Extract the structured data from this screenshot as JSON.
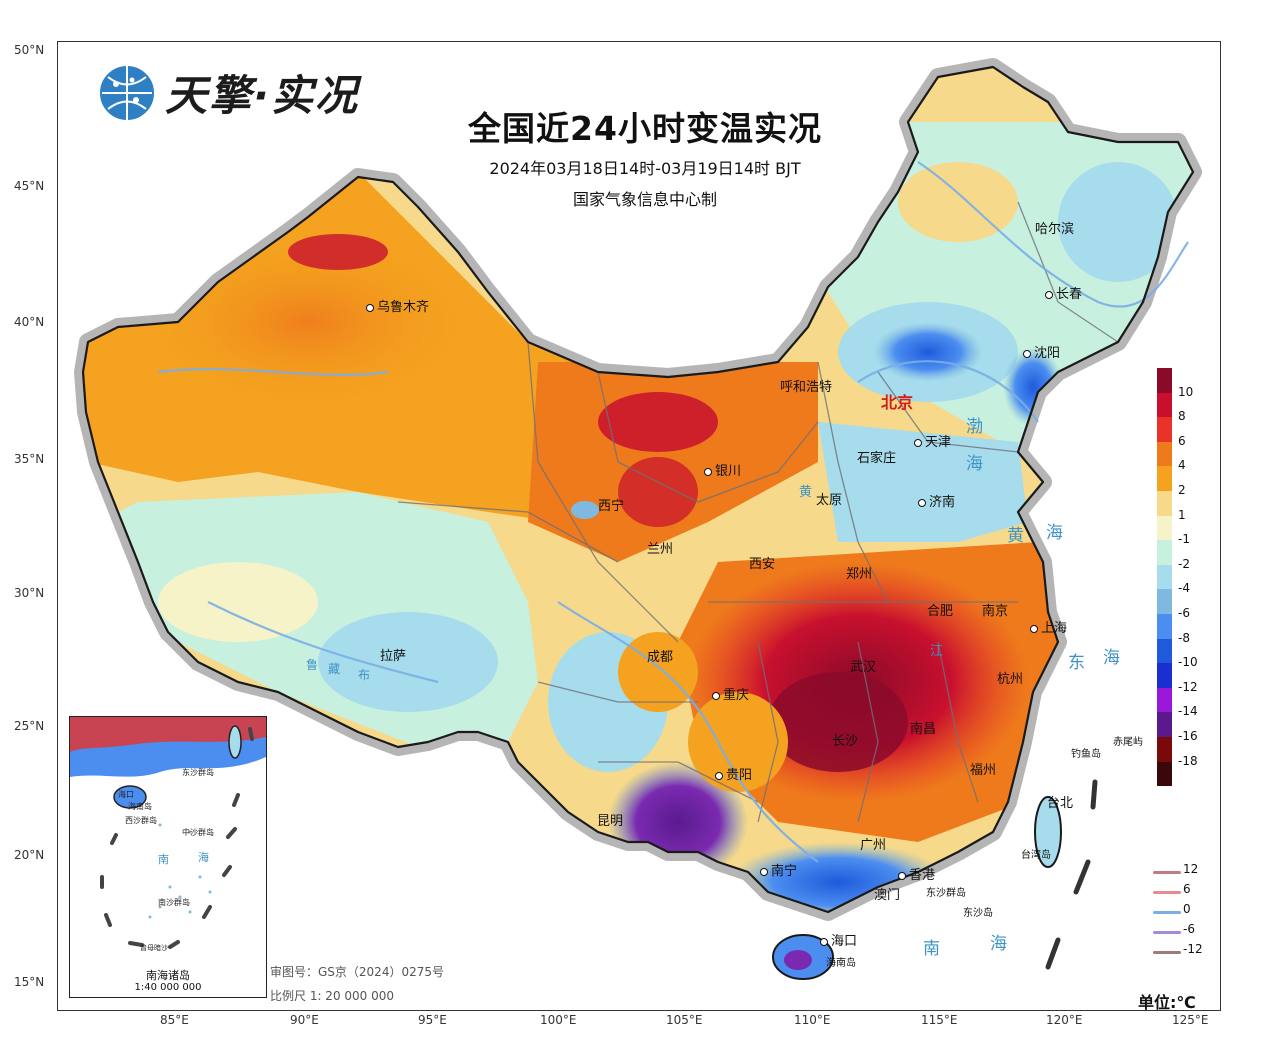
{
  "header": {
    "brand": "天擎·实况",
    "title": "全国近24小时变温实况",
    "subtitle": "2024年03月18日14时-03月19日14时 BJT",
    "organization": "国家气象信息中心制"
  },
  "axes": {
    "latitudes": [
      "50°N",
      "45°N",
      "40°N",
      "35°N",
      "30°N",
      "25°N",
      "20°N",
      "15°N"
    ],
    "longitudes": [
      "85°E",
      "90°E",
      "95°E",
      "100°E",
      "105°E",
      "110°E",
      "115°E",
      "120°E",
      "125°E"
    ]
  },
  "cities": [
    {
      "name": "乌鲁木齐"
    },
    {
      "name": "哈尔滨"
    },
    {
      "name": "长春"
    },
    {
      "name": "沈阳"
    },
    {
      "name": "呼和浩特"
    },
    {
      "name": "天津"
    },
    {
      "name": "石家庄"
    },
    {
      "name": "银川"
    },
    {
      "name": "太原"
    },
    {
      "name": "济南"
    },
    {
      "name": "西宁"
    },
    {
      "name": "兰州"
    },
    {
      "name": "西安"
    },
    {
      "name": "郑州"
    },
    {
      "name": "合肥"
    },
    {
      "name": "南京"
    },
    {
      "name": "上海"
    },
    {
      "name": "拉萨"
    },
    {
      "name": "成都"
    },
    {
      "name": "武汉"
    },
    {
      "name": "杭州"
    },
    {
      "name": "重庆"
    },
    {
      "name": "长沙"
    },
    {
      "name": "南昌"
    },
    {
      "name": "贵阳"
    },
    {
      "name": "福州"
    },
    {
      "name": "台北"
    },
    {
      "name": "昆明"
    },
    {
      "name": "广州"
    },
    {
      "name": "南宁"
    },
    {
      "name": "香港"
    },
    {
      "name": "澳门"
    },
    {
      "name": "海口"
    }
  ],
  "capital": "北京",
  "places": {
    "diaoyu": "钓鱼岛",
    "chiwei": "赤尾屿",
    "taiwan": "台湾岛",
    "dongsha": "东沙群岛",
    "dongsha_island": "东沙岛",
    "hainan": "海南岛"
  },
  "seas": {
    "bohai_1": "渤",
    "bohai_2": "海",
    "huanghai_1": "黄",
    "huanghai_2": "海",
    "donghai_1": "东",
    "donghai_2": "海",
    "nanhai_1": "南",
    "nanhai_2": "海"
  },
  "rivers": {
    "huang": "黄",
    "jiang": "江",
    "lu": "鲁",
    "zang": "藏",
    "bu": "布"
  },
  "legend": {
    "labels": [
      "10",
      "8",
      "6",
      "4",
      "2",
      "1",
      "-1",
      "-2",
      "-4",
      "-6",
      "-8",
      "-10",
      "-12",
      "-14",
      "-16",
      "-18"
    ],
    "colors": [
      "#8b0a2a",
      "#c8102e",
      "#e8322a",
      "#ee7a1c",
      "#f4a21f",
      "#f7d98a",
      "#f6f3c8",
      "#c8f0df",
      "#a6dcec",
      "#7fb9df",
      "#4c8ef0",
      "#1e5adb",
      "#1a2fd0",
      "#9a18d8",
      "#5a1a8e",
      "#7a0a0a",
      "#3a0808"
    ],
    "unit": "单位:℃"
  },
  "isotherm_legend": [
    {
      "label": "12",
      "color": "#c47a86"
    },
    {
      "label": "6",
      "color": "#e88a90"
    },
    {
      "label": "0",
      "color": "#7aaee6"
    },
    {
      "label": "-6",
      "color": "#a888d8"
    },
    {
      "label": "-12",
      "color": "#a07a7a"
    }
  ],
  "footer": {
    "review_no": "审图号：GS京（2024）0275号",
    "scale": "比例尺 1: 20 000 000"
  },
  "inset": {
    "title": "南海诸岛",
    "scale": "1:40 000 000",
    "labels": {
      "haikou": "海口",
      "hainan": "海南岛",
      "xisha": "西沙群岛",
      "zhongsha": "中沙群岛",
      "nan": "南",
      "hai": "海",
      "dongsha": "东沙群岛",
      "nansha": "南沙群岛",
      "zengmu": "曾母暗沙"
    }
  }
}
